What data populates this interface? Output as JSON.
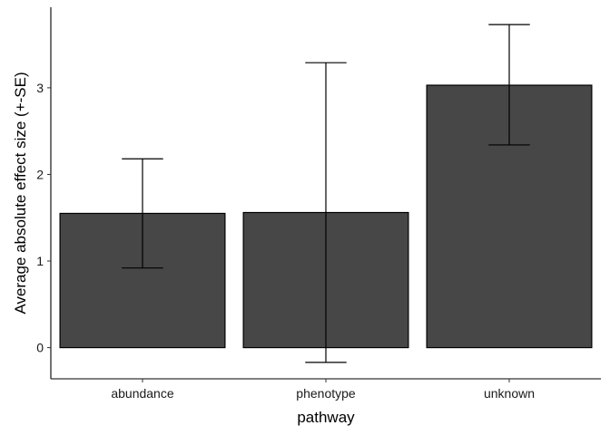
{
  "chart_data": {
    "type": "bar",
    "title": "",
    "xlabel": "pathway",
    "ylabel": "Average absolute effect size (+-SE)",
    "categories": [
      "abundance",
      "phenotype",
      "unknown"
    ],
    "values": [
      1.55,
      1.56,
      3.03
    ],
    "error_low": [
      0.92,
      -0.17,
      2.34
    ],
    "error_high": [
      2.18,
      3.29,
      3.73
    ],
    "ylim": [
      -0.36,
      3.93
    ],
    "yticks": [
      0,
      1,
      2,
      3
    ],
    "grid": false,
    "bar_color": "#474747",
    "bar_outline": "#000000",
    "error_color": "#000000"
  }
}
